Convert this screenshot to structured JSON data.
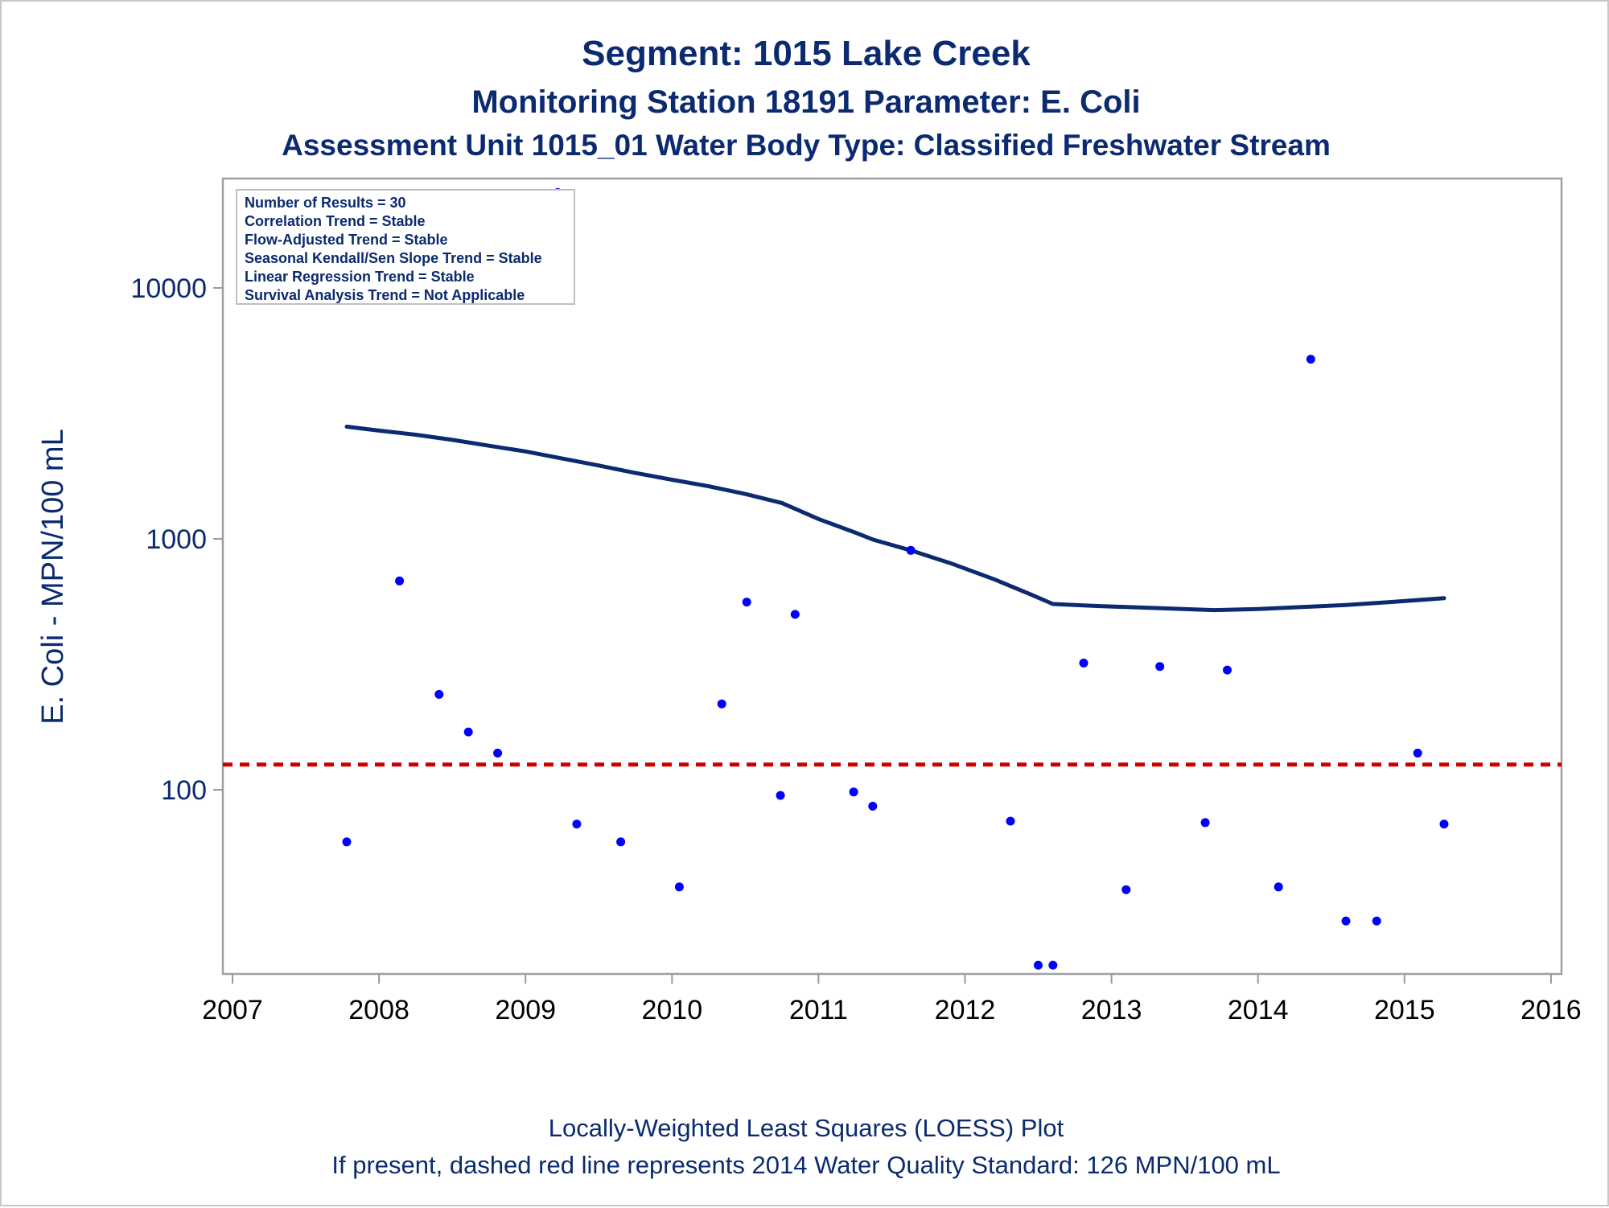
{
  "titles": {
    "line1": "Segment: 1015  Lake Creek",
    "line2": "Monitoring Station 18191 Parameter: E. Coli",
    "line3": "Assessment Unit 1015_01   Water Body Type: Classified Freshwater Stream"
  },
  "inset": {
    "lines": [
      "Number of Results = 30",
      "Correlation Trend = Stable",
      "Flow-Adjusted Trend = Stable",
      "Seasonal Kendall/Sen Slope Trend = Stable",
      "Linear Regression Trend = Stable",
      "Survival Analysis Trend = Not Applicable"
    ]
  },
  "footnotes": {
    "line1": "Locally-Weighted Least Squares (LOESS) Plot",
    "line2": "If present, dashed red line represents 2014 Water Quality Standard: 126 MPN/100 mL"
  },
  "colors": {
    "title": "#0b2a6f",
    "points": "#0000ff",
    "loess": "#0b2a6f",
    "standard_line": "#cc0000",
    "axis": "#999999"
  },
  "chart_data": {
    "type": "scatter",
    "title": "Segment: 1015  Lake Creek",
    "ylabel": "E. Coli - MPN/100 mL",
    "xlabel": "",
    "x_ticks": [
      "2007",
      "2008",
      "2009",
      "2010",
      "2011",
      "2012",
      "2013",
      "2014",
      "2015",
      "2016"
    ],
    "xlim": [
      2007,
      2016
    ],
    "y_scale": "log",
    "y_ticks": [
      "100",
      "1000",
      "10000"
    ],
    "ylim": [
      20,
      25000
    ],
    "grid": false,
    "standard_line": {
      "value": 126,
      "style": "dashed"
    },
    "series": [
      {
        "kind": "points",
        "x": [
          2007.78,
          2008.14,
          2008.41,
          2008.61,
          2008.81,
          2009.22,
          2009.35,
          2009.65,
          2010.05,
          2010.34,
          2010.51,
          2010.74,
          2010.84,
          2011.24,
          2011.37,
          2011.63,
          2012.31,
          2012.5,
          2012.6,
          2012.81,
          2013.1,
          2013.33,
          2013.64,
          2013.79,
          2014.14,
          2014.36,
          2014.6,
          2014.81,
          2015.09,
          2015.27
        ],
        "y": [
          62,
          680,
          240,
          170,
          140,
          24000,
          73,
          62,
          41,
          220,
          560,
          95,
          500,
          98,
          86,
          900,
          75,
          20,
          20,
          320,
          40,
          310,
          74,
          300,
          41,
          5200,
          30,
          30,
          140,
          73
        ]
      },
      {
        "kind": "loess",
        "x": [
          2007.78,
          2008,
          2008.25,
          2008.5,
          2008.75,
          2009,
          2009.25,
          2009.5,
          2009.75,
          2010,
          2010.25,
          2010.5,
          2010.75,
          2011,
          2011.25,
          2011.38,
          2011.63,
          2011.9,
          2012.2,
          2012.45,
          2012.6,
          2012.9,
          2013.3,
          2013.7,
          2014,
          2014.3,
          2014.6,
          2014.9,
          2015.27
        ],
        "y": [
          2800,
          2700,
          2600,
          2480,
          2350,
          2230,
          2090,
          1960,
          1830,
          1720,
          1620,
          1510,
          1390,
          1200,
          1060,
          990,
          900,
          800,
          690,
          600,
          550,
          540,
          530,
          520,
          525,
          535,
          545,
          560,
          580
        ]
      }
    ]
  }
}
